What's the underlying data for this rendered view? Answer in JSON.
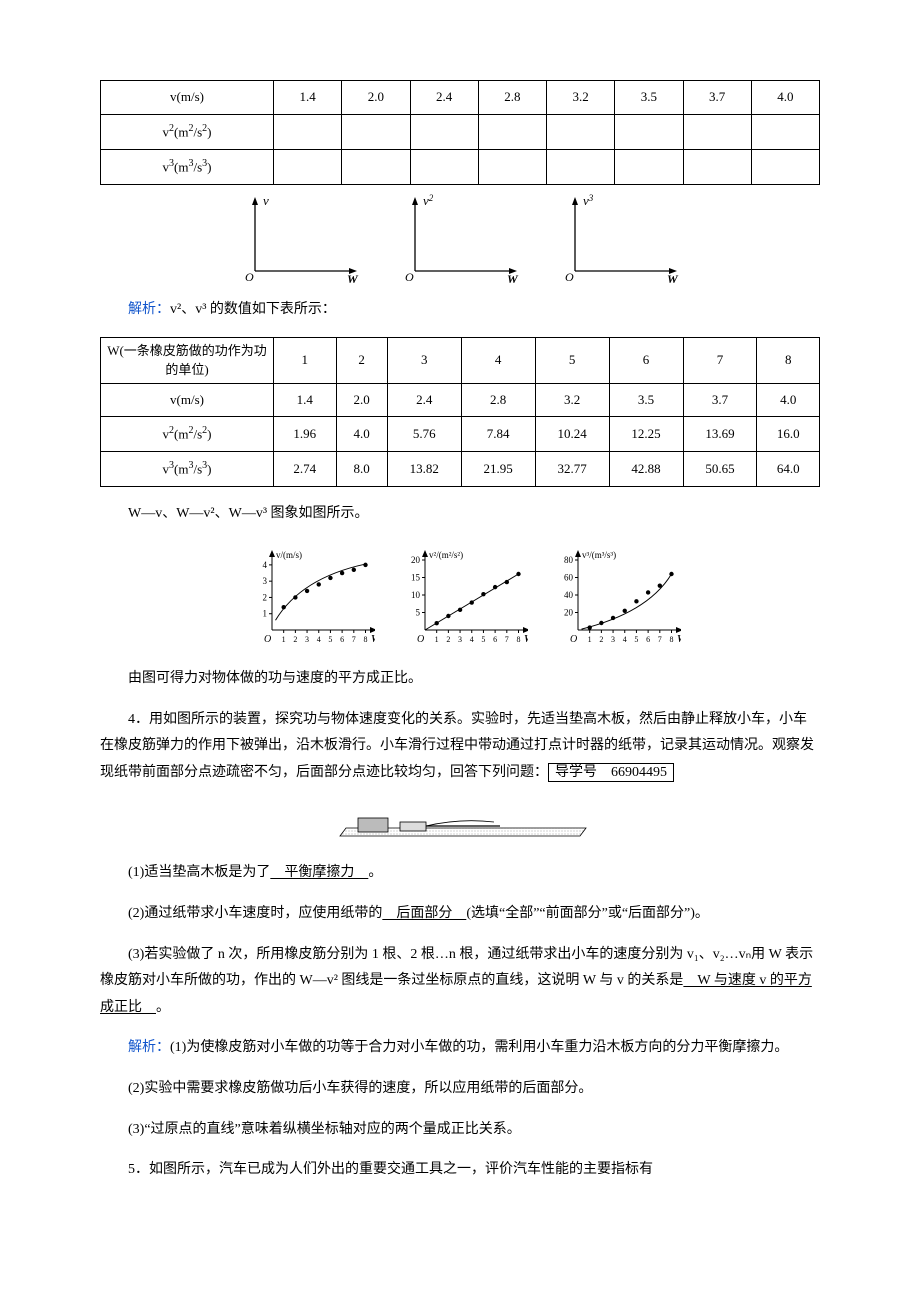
{
  "table1": {
    "rows": [
      {
        "label": "v(m/s)",
        "cells": [
          "1.4",
          "2.0",
          "2.4",
          "2.8",
          "3.2",
          "3.5",
          "3.7",
          "4.0"
        ]
      },
      {
        "label": "v²(m²/s²)",
        "cells": [
          "",
          "",
          "",
          "",
          "",
          "",
          "",
          ""
        ]
      },
      {
        "label": "v³(m³/s³)",
        "cells": [
          "",
          "",
          "",
          "",
          "",
          "",
          "",
          ""
        ]
      }
    ]
  },
  "emptyAxes": {
    "labels": [
      "v",
      "v²",
      "v³"
    ],
    "xLabel": "W",
    "origin": "O",
    "axisColor": "#000000"
  },
  "line_jiexi1": "解析：",
  "line_jiexi1_rest": "v²、v³ 的数值如下表所示：",
  "table2": {
    "rows": [
      {
        "label": "W(一条橡皮筋做的功作为功的单位)",
        "cells": [
          "1",
          "2",
          "3",
          "4",
          "5",
          "6",
          "7",
          "8"
        ]
      },
      {
        "label": "v(m/s)",
        "cells": [
          "1.4",
          "2.0",
          "2.4",
          "2.8",
          "3.2",
          "3.5",
          "3.7",
          "4.0"
        ]
      },
      {
        "label": "v²(m²/s²)",
        "cells": [
          "1.96",
          "4.0",
          "5.76",
          "7.84",
          "10.24",
          "12.25",
          "13.69",
          "16.0"
        ]
      },
      {
        "label": "v³(m³/s³)",
        "cells": [
          "2.74",
          "8.0",
          "13.82",
          "21.95",
          "32.77",
          "42.88",
          "50.65",
          "64.0"
        ]
      }
    ]
  },
  "line_graphs_intro": "W—v、W—v²、W—v³ 图象如图所示。",
  "charts": {
    "background": "#ffffff",
    "axisColor": "#000000",
    "pointColor": "#000000",
    "lineWidth": 1,
    "markerSize": 2.2,
    "xTickLabels": [
      "1",
      "2",
      "3",
      "4",
      "5",
      "6",
      "7",
      "8"
    ],
    "c1": {
      "yLabel": "v/(m/s)",
      "yTicks": [
        1,
        2,
        3,
        4
      ],
      "yMax": 4.3,
      "points": [
        [
          1,
          1.4
        ],
        [
          2,
          2.0
        ],
        [
          3,
          2.4
        ],
        [
          4,
          2.8
        ],
        [
          5,
          3.2
        ],
        [
          6,
          3.5
        ],
        [
          7,
          3.7
        ],
        [
          8,
          4.0
        ]
      ],
      "curveType": "concave-down"
    },
    "c2": {
      "yLabel": "v²/(m²/s²)",
      "yTicks": [
        5,
        10,
        15,
        20
      ],
      "yMax": 20,
      "points": [
        [
          1,
          1.96
        ],
        [
          2,
          4.0
        ],
        [
          3,
          5.76
        ],
        [
          4,
          7.84
        ],
        [
          5,
          10.24
        ],
        [
          6,
          12.25
        ],
        [
          7,
          13.69
        ],
        [
          8,
          16.0
        ]
      ],
      "curveType": "linear"
    },
    "c3": {
      "yLabel": "v³/(m³/s³)",
      "yTicks": [
        20,
        40,
        60,
        80
      ],
      "yMax": 80,
      "points": [
        [
          1,
          2.74
        ],
        [
          2,
          8.0
        ],
        [
          3,
          13.82
        ],
        [
          4,
          21.95
        ],
        [
          5,
          32.77
        ],
        [
          6,
          42.88
        ],
        [
          7,
          50.65
        ],
        [
          8,
          64.0
        ]
      ],
      "curveType": "concave-up"
    },
    "xLabel": "W",
    "origin": "O"
  },
  "line_conclusion": "由图可得力对物体做的功与速度的平方成正比。",
  "q4_intro": "4．用如图所示的装置，探究功与物体速度变化的关系。实验时，先适当垫高木板，然后由静止释放小车，小车在橡皮筋弹力的作用下被弹出，沿木板滑行。小车滑行过程中带动通过打点计时器的纸带，记录其运动情况。观察发现纸带前面部分点迹疏密不匀，后面部分点迹比较均匀，回答下列问题：",
  "q4_box": "导学号　66904495",
  "q4_1_prefix": "(1)适当垫高木板是为了",
  "q4_1_ans": "　平衡摩擦力　",
  "q4_1_suffix": "。",
  "q4_2_prefix": "(2)通过纸带求小车速度时，应使用纸带的",
  "q4_2_ans": "　后面部分　",
  "q4_2_suffix": "(选填“全部”“前面部分”或“后面部分”)。",
  "q4_3_prefix": "(3)若实验做了 n 次，所用橡皮筋分别为 1 根、2 根…n 根，通过纸带求出小车的速度分别为 v₁、v₂…vₙ用 W 表示橡皮筋对小车所做的功，作出的 W—v² 图线是一条过坐标原点的直线，这说明 W 与 v 的关系是",
  "q4_3_ans": "　W 与速度 v 的平方成正比　",
  "q4_3_suffix": "。",
  "jiexi2_label": "解析：",
  "jiexi2_1": "(1)为使橡皮筋对小车做的功等于合力对小车做的功，需利用小车重力沿木板方向的分力平衡摩擦力。",
  "jiexi2_2": "(2)实验中需要求橡皮筋做功后小车获得的速度，所以应用纸带的后面部分。",
  "jiexi2_3": "(3)“过原点的直线”意味着纵横坐标轴对应的两个量成正比关系。",
  "q5_intro": "5．如图所示，汽车已成为人们外出的重要交通工具之一，评价汽车性能的主要指标有"
}
